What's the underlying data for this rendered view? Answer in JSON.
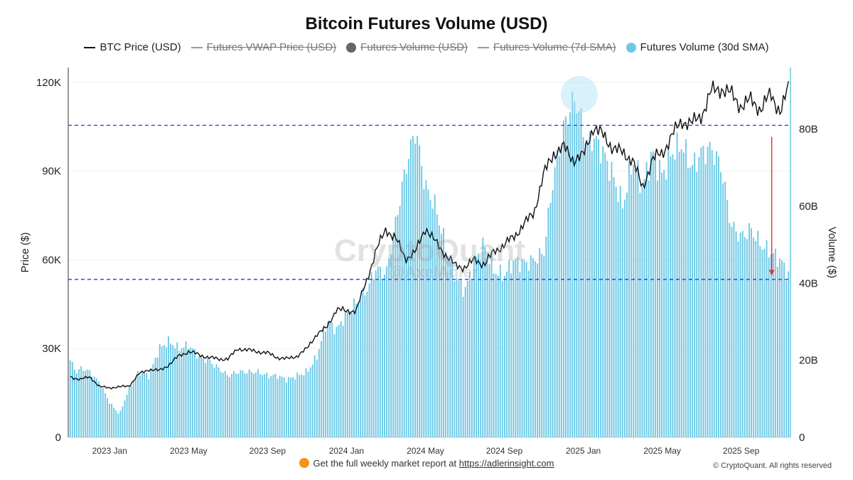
{
  "title": "Bitcoin Futures Volume (USD)",
  "legend": [
    {
      "label": "BTC Price (USD)",
      "kind": "line",
      "color": "#111111",
      "active": true
    },
    {
      "label": "Futures VWAP Price (USD)",
      "kind": "line",
      "color": "#999999",
      "active": false
    },
    {
      "label": "Futures Volume (USD)",
      "kind": "dot",
      "color": "#666666",
      "active": false
    },
    {
      "label": "Futures Volume (7d SMA)",
      "kind": "line",
      "color": "#999999",
      "active": false
    },
    {
      "label": "Futures Volume (30d SMA)",
      "kind": "dot",
      "color": "#6cc8e6",
      "active": true
    }
  ],
  "watermark": {
    "main": "CryptoQuant",
    "sub": "@AxelAdler"
  },
  "footer": {
    "text": "Get the full weekly market report at",
    "link": "https://adlerinsight.com"
  },
  "copyright": "© CryptoQuant. All rights reserved",
  "chart_data": {
    "type": "bar",
    "title": "Bitcoin Futures Volume (USD)",
    "xlabel": "",
    "ylabel_left": "Price ($)",
    "ylabel_right": "Volume ($)",
    "ylim_left": [
      0,
      125000
    ],
    "ylim_right": [
      0,
      96000000000
    ],
    "left_ticks": [
      0,
      30000,
      60000,
      90000,
      120000
    ],
    "left_tick_labels": [
      "0",
      "30K",
      "60K",
      "90K",
      "120K"
    ],
    "right_ticks": [
      0,
      20000000000,
      40000000000,
      60000000000,
      80000000000
    ],
    "right_tick_labels": [
      "0",
      "20B",
      "40B",
      "60B",
      "80B"
    ],
    "x_tick_labels": [
      "2023 Jan",
      "2023 May",
      "2023 Sep",
      "2024 Jan",
      "2024 May",
      "2024 Sep",
      "2025 Jan",
      "2025 May",
      "2025 Sep"
    ],
    "x_tick_months": [
      2,
      6,
      10,
      14,
      18,
      22,
      26,
      30,
      34
    ],
    "x_range_months": [
      -0.1,
      36.5
    ],
    "grid": true,
    "legend_position": "top",
    "reference_lines_volume": [
      81000000000,
      41000000000
    ],
    "highlight_circle": {
      "x_month": 25.8,
      "y_volume": 89000000000
    },
    "arrow": {
      "x_month": 35.55,
      "from_volume": 78000000000,
      "to_volume": 42000000000
    },
    "series": [
      {
        "name": "Futures Volume (30d SMA)",
        "axis": "right",
        "color": "#6cc8e6",
        "x_months": [
          0.0,
          0.3,
          0.6,
          1.0,
          1.5,
          2.0,
          2.5,
          3.0,
          3.5,
          4.0,
          4.5,
          5.0,
          5.5,
          6.0,
          6.5,
          7.0,
          7.5,
          8.0,
          8.5,
          9.0,
          9.5,
          10.0,
          10.5,
          11.0,
          11.5,
          12.0,
          12.5,
          13.0,
          13.5,
          14.0,
          14.5,
          15.0,
          15.5,
          16.0,
          16.5,
          17.0,
          17.5,
          18.0,
          18.5,
          19.0,
          19.5,
          20.0,
          20.5,
          21.0,
          21.5,
          22.0,
          22.5,
          23.0,
          23.5,
          24.0,
          24.5,
          25.0,
          25.3,
          25.6,
          25.9,
          26.2,
          26.5,
          27.0,
          27.5,
          28.0,
          28.5,
          29.0,
          29.5,
          30.0,
          30.5,
          31.0,
          31.5,
          32.0,
          32.5,
          33.0,
          33.5,
          34.0,
          34.5,
          35.0,
          35.5,
          36.0,
          36.4
        ],
        "values_billions": [
          20,
          17,
          18,
          17,
          14,
          9,
          6,
          13,
          17,
          16,
          23,
          25,
          23,
          24,
          21,
          20,
          18,
          16,
          17,
          17,
          17,
          16,
          16,
          15,
          16,
          17,
          21,
          30,
          28,
          32,
          35,
          38,
          44,
          42,
          56,
          70,
          80,
          65,
          60,
          50,
          42,
          38,
          46,
          50,
          43,
          42,
          46,
          45,
          46,
          48,
          68,
          80,
          85,
          88,
          82,
          76,
          78,
          74,
          68,
          60,
          72,
          65,
          74,
          68,
          74,
          76,
          70,
          74,
          75,
          70,
          55,
          52,
          54,
          50,
          48,
          46,
          42
        ]
      },
      {
        "name": "BTC Price (USD)",
        "axis": "left",
        "color": "#111111",
        "x_months": [
          0.0,
          0.5,
          1.0,
          1.5,
          2.0,
          2.5,
          3.0,
          3.5,
          4.0,
          4.5,
          5.0,
          5.5,
          6.0,
          6.5,
          7.0,
          7.5,
          8.0,
          8.5,
          9.0,
          9.5,
          10.0,
          10.5,
          11.0,
          11.5,
          12.0,
          12.5,
          13.0,
          13.5,
          14.0,
          14.5,
          15.0,
          15.5,
          16.0,
          16.5,
          17.0,
          17.5,
          18.0,
          18.5,
          19.0,
          19.5,
          20.0,
          20.5,
          21.0,
          21.5,
          22.0,
          22.5,
          23.0,
          23.5,
          24.0,
          24.5,
          25.0,
          25.5,
          26.0,
          26.5,
          27.0,
          27.5,
          28.0,
          28.5,
          29.0,
          29.5,
          30.0,
          30.5,
          31.0,
          31.5,
          32.0,
          32.5,
          33.0,
          33.5,
          34.0,
          34.5,
          35.0,
          35.5,
          36.0,
          36.4
        ],
        "values": [
          20500,
          19500,
          20500,
          17000,
          16800,
          17000,
          17500,
          21500,
          23000,
          22500,
          24500,
          27500,
          29000,
          28000,
          27000,
          26500,
          26500,
          30000,
          29500,
          29000,
          28500,
          27000,
          26500,
          27500,
          30000,
          35000,
          37000,
          43500,
          42500,
          43000,
          52500,
          63000,
          70500,
          67000,
          60500,
          62500,
          71000,
          66000,
          62000,
          58000,
          57500,
          60000,
          58500,
          63000,
          65000,
          68000,
          72000,
          76000,
          89000,
          96000,
          98000,
          94000,
          95000,
          105000,
          102000,
          98000,
          96000,
          94000,
          84000,
          94000,
          96000,
          102000,
          107000,
          106000,
          109000,
          117000,
          118000,
          116000,
          112000,
          114000,
          111000,
          116000,
          110000,
          118000
        ]
      }
    ]
  }
}
